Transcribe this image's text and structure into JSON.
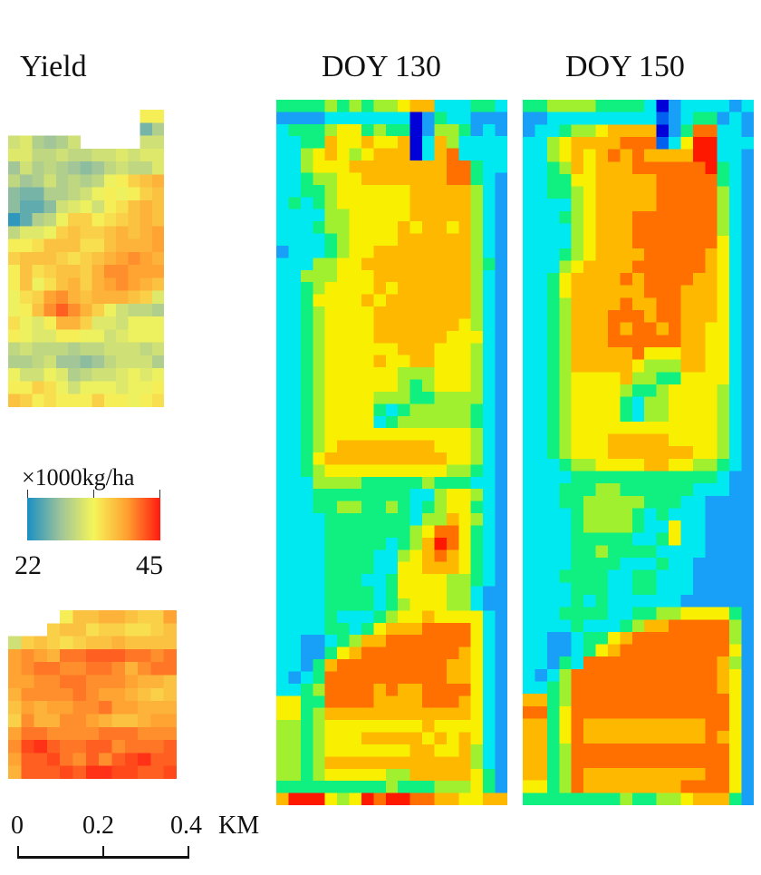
{
  "chart_data": {
    "type": "heatmap",
    "panels": [
      {
        "id": "yield",
        "title": "Yield",
        "unit": "×1000kg/ha",
        "scale": "yield",
        "parts": [
          {
            "id": "yield-top",
            "note": "values in 1000 kg/ha; null = outside field",
            "rows": [
              [
                null,
                null,
                null,
                null,
                null,
                null,
                null,
                null,
                null,
                null,
                null,
                34,
                34
              ],
              [
                null,
                null,
                null,
                null,
                null,
                null,
                null,
                null,
                null,
                null,
                null,
                26,
                29
              ],
              [
                31,
                32,
                29,
                28,
                29,
                31,
                null,
                null,
                null,
                null,
                null,
                31,
                31
              ],
              [
                32,
                32,
                30,
                30,
                31,
                30,
                30,
                31,
                31,
                32,
                31,
                32,
                32
              ],
              [
                28,
                31,
                29,
                30,
                29,
                28,
                27,
                28,
                30,
                31,
                30,
                30,
                32
              ],
              [
                30,
                28,
                29,
                31,
                29,
                30,
                29,
                30,
                33,
                34,
                36,
                37,
                38
              ],
              [
                27,
                26,
                26,
                29,
                29,
                30,
                31,
                33,
                34,
                33,
                34,
                36,
                37
              ],
              [
                27,
                25,
                25,
                27,
                31,
                32,
                33,
                31,
                34,
                35,
                37,
                38,
                37
              ],
              [
                23,
                25,
                29,
                30,
                33,
                36,
                36,
                34,
                35,
                36,
                37,
                38,
                37
              ],
              [
                30,
                32,
                32,
                33,
                36,
                37,
                36,
                36,
                37,
                38,
                37,
                38,
                39
              ],
              [
                34,
                34,
                35,
                37,
                37,
                37,
                35,
                35,
                37,
                38,
                38,
                38,
                39
              ],
              [
                36,
                37,
                37,
                37,
                36,
                35,
                36,
                37,
                38,
                39,
                40,
                39,
                38
              ],
              [
                34,
                37,
                35,
                36,
                37,
                37,
                36,
                38,
                40,
                40,
                39,
                39,
                39
              ],
              [
                34,
                37,
                33,
                35,
                37,
                38,
                36,
                38,
                39,
                40,
                39,
                38,
                37
              ],
              [
                33,
                35,
                36,
                39,
                40,
                38,
                37,
                38,
                38,
                38,
                37,
                36,
                32
              ],
              [
                33,
                34,
                37,
                40,
                42,
                40,
                38,
                36,
                33,
                31,
                30,
                30,
                29
              ],
              [
                35,
                33,
                32,
                34,
                38,
                38,
                36,
                32,
                32,
                31,
                33,
                33,
                33
              ],
              [
                34,
                33,
                32,
                32,
                34,
                34,
                33,
                33,
                31,
                32,
                33,
                33,
                33
              ],
              [
                30,
                31,
                30,
                30,
                30,
                29,
                30,
                30,
                31,
                31,
                31,
                30,
                31
              ],
              [
                29,
                29,
                30,
                31,
                28,
                28,
                27,
                28,
                30,
                31,
                31,
                31,
                29
              ],
              [
                33,
                31,
                31,
                33,
                32,
                29,
                30,
                31,
                31,
                32,
                33,
                32,
                33
              ],
              [
                34,
                34,
                36,
                35,
                33,
                31,
                33,
                33,
                33,
                32,
                33,
                33,
                34
              ],
              [
                37,
                36,
                34,
                35,
                34,
                34,
                34,
                36,
                34,
                34,
                33,
                34,
                35
              ]
            ]
          },
          {
            "id": "yield-bottom",
            "rows": [
              [
                null,
                null,
                null,
                null,
                34,
                37,
                37,
                38,
                38,
                37,
                36,
                36,
                39
              ],
              [
                null,
                null,
                null,
                36,
                37,
                37,
                35,
                36,
                36,
                35,
                35,
                36,
                37
              ],
              [
                31,
                36,
                37,
                36,
                35,
                36,
                37,
                37,
                38,
                37,
                37,
                37,
                37
              ],
              [
                39,
                40,
                39,
                38,
                41,
                41,
                42,
                42,
                42,
                41,
                41,
                40,
                41
              ],
              [
                39,
                40,
                41,
                41,
                40,
                40,
                41,
                41,
                40,
                38,
                40,
                41,
                41
              ],
              [
                39,
                39,
                40,
                40,
                41,
                41,
                40,
                40,
                40,
                39,
                38,
                38,
                37
              ],
              [
                38,
                40,
                40,
                40,
                40,
                41,
                40,
                39,
                39,
                38,
                37,
                36,
                37
              ],
              [
                37,
                39,
                38,
                39,
                39,
                40,
                40,
                41,
                39,
                39,
                38,
                38,
                38
              ],
              [
                36,
                40,
                38,
                38,
                40,
                40,
                39,
                38,
                37,
                37,
                38,
                39,
                39
              ],
              [
                39,
                41,
                41,
                40,
                40,
                40,
                40,
                41,
                41,
                41,
                40,
                40,
                40
              ],
              [
                40,
                43,
                44,
                42,
                41,
                41,
                42,
                42,
                40,
                41,
                41,
                41,
                42
              ],
              [
                39,
                42,
                42,
                43,
                41,
                40,
                42,
                40,
                42,
                43,
                44,
                42,
                42
              ],
              [
                38,
                42,
                42,
                42,
                43,
                42,
                44,
                44,
                43,
                43,
                42,
                42,
                43
              ]
            ]
          }
        ]
      },
      {
        "id": "doy130",
        "title": "DOY 130",
        "scale": "jet",
        "note": "jet colormap codes 0 (dark blue) to 9 (red)",
        "rows": [
          "4444545455677333443",
          "2222333333302433222",
          "3444566454402554232",
          "3344766766703753333",
          "3356765677703783333",
          "3356667777777788433",
          "3345566777777788432",
          "3344566666677777532",
          "3434566666677777532",
          "3333556666677777532",
          "3334556666767767532",
          "3333456666777777532",
          "2333456677777777532",
          "3335566777777777542",
          "3355566677777777532",
          "3345666676777777532",
          "3346666767777777532",
          "3345666677777777532",
          "3345666677777776532",
          "3345666677777766632",
          "3345666666777666532",
          "3345666676677666532",
          "3345666666555666532",
          "3345666666545666532",
          "3345666655544555532",
          "3345666643455555432",
          "3345666634555555432",
          "3345666666666666532",
          "3345677777777666532",
          "3346777777777766532",
          "3345666666666655432",
          "3335555444445444332",
          "3334444444433566532",
          "3334455445434566432",
          "3333444444435576532",
          "3333444444456886432",
          "3333444443457986432",
          "3333444433567876432",
          "3333444433667776432",
          "3333444334666655432",
          "3333444434666655322",
          "3333444434566655322",
          "3333433345667666632",
          "3333443467778888632",
          "3322345778888888632",
          "3322467888888887632",
          "3324788888888877632",
          "3234888888888877632",
          "3345888878778888632",
          "6644888877778887632",
          "6645777777777777632",
          "5545666666667666632",
          "5545666777776767632",
          "5545666666677667532",
          "5545777777777777532",
          "5545666665577777642",
          "4444444445444555642",
          "7999656989988776677"
        ]
      },
      {
        "id": "doy150",
        "title": "DOY 150",
        "scale": "jet",
        "rows": [
          "4455554444302333323",
          "2233333333312344232",
          "2334556777702488332",
          "3356777788813699333",
          "3356767878777799332",
          "3345767778888889432",
          "3344667777788888432",
          "3344567777788888532",
          "3333567777788888532",
          "3334567778888888532",
          "3333567778888888532",
          "3333567778888888632",
          "3334567777888887632",
          "3335677778888887632",
          "3346777787888877632",
          "3346777777888777632",
          "3345777787788777632",
          "3345777888788777632",
          "3345777878878776632",
          "3345777888888776632",
          "3345777778666776632",
          "3345777776555776632",
          "3345666675544666632",
          "3345666654456666532",
          "3345666643556666532",
          "3345666643556666532",
          "3345666666666666532",
          "3345666777776666532",
          "3345666777777766532",
          "3334556666776655432",
          "3333444444444444322",
          "3334445544444433322",
          "3334455555444332222",
          "3333455554343332222",
          "3333455554336332222",
          "3333444443346332222",
          "3333445444433332222",
          "3333444433343322222",
          "3334444334433322222",
          "3333444334433322222",
          "3333434333333222222",
          "3334444334455666642",
          "3333433345778888852",
          "3322344678888888852",
          "3322346788888888862",
          "3324388888888888752",
          "3235888888888888762",
          "3345888888888888762",
          "7745888888888888862",
          "8846888888888888862",
          "7746877777777778862",
          "7746877777777778762",
          "7745888888888888862",
          "7745888888888888862",
          "7745877777777778862",
          "6645877777777888862",
          "4444444454455677742"
        ]
      }
    ],
    "colorbar": {
      "label": "×1000kg/ha",
      "min": 22,
      "max": 45,
      "min_label": "22",
      "max_label": "45",
      "colors": [
        "#1a8fc4",
        "#9ec49a",
        "#f5f55a",
        "#ffa030",
        "#ff1a10"
      ]
    },
    "scalebar": {
      "labels": [
        "0",
        "0.2",
        "0.4"
      ],
      "unit": "KM"
    },
    "jet_colors": [
      "#0000d8",
      "#0060f0",
      "#18a0f8",
      "#00e8f0",
      "#10f080",
      "#a0f030",
      "#f8f000",
      "#ffb800",
      "#ff7000",
      "#ff1800"
    ]
  }
}
